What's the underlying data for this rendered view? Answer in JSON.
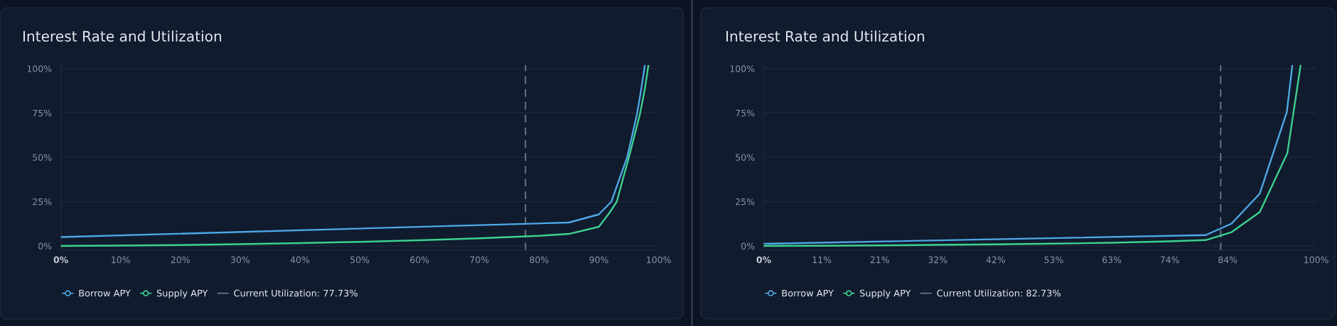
{
  "chart_data": [
    {
      "type": "line",
      "title": "Interest Rate and Utilization",
      "xlim": [
        0,
        100
      ],
      "xticks": [
        {
          "value": 0,
          "label": "0%"
        },
        {
          "value": 10,
          "label": "10%"
        },
        {
          "value": 20,
          "label": "20%"
        },
        {
          "value": 30,
          "label": "30%"
        },
        {
          "value": 40,
          "label": "40%"
        },
        {
          "value": 50,
          "label": "50%"
        },
        {
          "value": 60,
          "label": "60%"
        },
        {
          "value": 70,
          "label": "70%"
        },
        {
          "value": 80,
          "label": "80%"
        },
        {
          "value": 90,
          "label": "90%"
        },
        {
          "value": 100,
          "label": "100%"
        }
      ],
      "ylim": [
        -2.5,
        102
      ],
      "yticks": [
        {
          "value": 0,
          "label": "0%"
        },
        {
          "value": 25,
          "label": "25%"
        },
        {
          "value": 50,
          "label": "50%"
        },
        {
          "value": 75,
          "label": "75%"
        },
        {
          "value": 100,
          "label": "100%"
        }
      ],
      "grid": "y",
      "legend": "bottom left",
      "line_style": "solid",
      "series": [
        {
          "name": "Borrow APY",
          "color": "#4ea9e6",
          "x": [
            0,
            85,
            90,
            92.1,
            93.4,
            94.7,
            95.6,
            96.4,
            97.1,
            97.7
          ],
          "values": [
            5.0,
            13.2,
            17.8,
            25.0,
            37.4,
            49.6,
            62.7,
            74.7,
            88.6,
            102
          ]
        },
        {
          "name": "Supply APY",
          "color": "#3ed18f",
          "x": [
            0,
            10,
            20,
            30,
            40,
            50,
            60,
            70,
            80,
            85,
            90,
            91.8,
            93.0,
            94.0,
            95.0,
            96.0,
            96.9,
            97.7,
            98.3
          ],
          "values": [
            0,
            0.2,
            0.5,
            1.0,
            1.6,
            2.3,
            3.2,
            4.3,
            5.7,
            6.8,
            10.8,
            18.8,
            25.0,
            37.4,
            49.6,
            62.7,
            74.7,
            88.6,
            102
          ]
        }
      ],
      "ref_lines": [
        {
          "axis": "x",
          "value": 77.73,
          "label": "Current Utilization: 77.73%",
          "color": "#6f7a8c",
          "line_style": "dashed"
        }
      ]
    },
    {
      "type": "line",
      "title": "Interest Rate and Utilization",
      "xlim": [
        0,
        100
      ],
      "xticks": [
        {
          "value": 0,
          "label": "0%"
        },
        {
          "value": 10.5,
          "label": "11%"
        },
        {
          "value": 21,
          "label": "21%"
        },
        {
          "value": 31.5,
          "label": "32%"
        },
        {
          "value": 42,
          "label": "42%"
        },
        {
          "value": 52.5,
          "label": "53%"
        },
        {
          "value": 63,
          "label": "63%"
        },
        {
          "value": 73.5,
          "label": "74%"
        },
        {
          "value": 84,
          "label": "84%"
        },
        {
          "value": 100,
          "label": "100%"
        }
      ],
      "ylim": [
        -2.5,
        102
      ],
      "yticks": [
        {
          "value": 0,
          "label": "0%"
        },
        {
          "value": 25,
          "label": "25%"
        },
        {
          "value": 50,
          "label": "50%"
        },
        {
          "value": 75,
          "label": "75%"
        },
        {
          "value": 100,
          "label": "100%"
        }
      ],
      "grid": "y",
      "legend": "bottom left",
      "line_style": "solid",
      "series": [
        {
          "name": "Borrow APY",
          "color": "#4ea9e6",
          "x": [
            0,
            80,
            84.7,
            89.8,
            94.7,
            95.7
          ],
          "values": [
            1.2,
            6.1,
            12.6,
            29.5,
            75.5,
            102
          ]
        },
        {
          "name": "Supply APY",
          "color": "#3ed18f",
          "x": [
            0,
            10.5,
            21,
            31.5,
            42,
            52.5,
            63,
            73.5,
            80,
            84.7,
            89.8,
            94.8,
            97.2
          ],
          "values": [
            0,
            0.1,
            0.3,
            0.6,
            0.9,
            1.3,
            1.8,
            2.6,
            3.3,
            7.8,
            19.1,
            52.4,
            102
          ]
        }
      ],
      "ref_lines": [
        {
          "axis": "x",
          "value": 82.73,
          "label": "Current Utilization: 82.73%",
          "color": "#6f7a8c",
          "line_style": "dashed"
        }
      ]
    }
  ]
}
